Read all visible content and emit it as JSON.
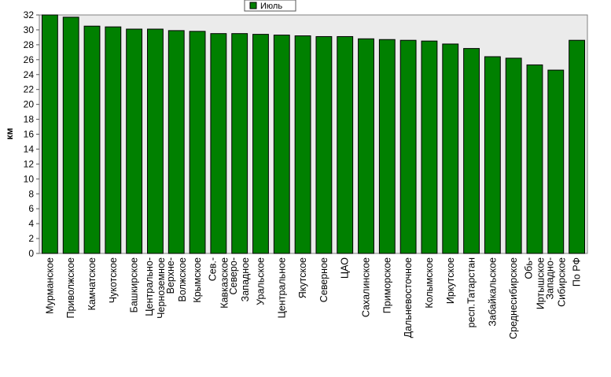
{
  "chart_data": {
    "type": "bar",
    "title": "",
    "xlabel": "",
    "ylabel": "км",
    "ylim": [
      0,
      32
    ],
    "ytick_step": 2,
    "grid": false,
    "legend_position": "top-center",
    "series": [
      {
        "name": "Июль",
        "color": "#008000",
        "values": [
          32.0,
          31.7,
          30.5,
          30.4,
          30.1,
          30.1,
          29.9,
          29.8,
          29.5,
          29.5,
          29.4,
          29.3,
          29.2,
          29.1,
          29.1,
          28.8,
          28.7,
          28.6,
          28.5,
          28.1,
          27.5,
          26.4,
          26.2,
          25.3,
          24.6,
          28.6
        ]
      }
    ],
    "categories": [
      "Мурманское",
      "Приволжское",
      "Камчатское",
      "Чукотское",
      "Башкирское",
      "Центрально-Черноземное",
      "Верхне-Волжское",
      "Крымское",
      "Сев.-Кавказское",
      "Северо-Западное",
      "Уральское",
      "Центральное",
      "Якутское",
      "Северное",
      "ЦАО",
      "Сахалинское",
      "Приморское",
      "Дальневосточное",
      "Колымское",
      "Иркутское",
      "респ.Татарстан",
      "Забайкальское",
      "Среднесибирское",
      "Обь-Иртышское",
      "Западно-Сибирское",
      "По РФ"
    ],
    "category_lines": [
      [
        "Мурманское"
      ],
      [
        "Приволжское"
      ],
      [
        "Камчатское"
      ],
      [
        "Чукотское"
      ],
      [
        "Башкирское"
      ],
      [
        "Центрально-",
        "Черноземное"
      ],
      [
        "Верхне-",
        "Волжское"
      ],
      [
        "Крымское"
      ],
      [
        "Сев.-",
        "Кавказское"
      ],
      [
        "Северо-",
        "Западное"
      ],
      [
        "Уральское"
      ],
      [
        "Центральное"
      ],
      [
        "Якутское"
      ],
      [
        "Северное"
      ],
      [
        "ЦАО"
      ],
      [
        "Сахалинское"
      ],
      [
        "Приморское"
      ],
      [
        "Дальневосточное"
      ],
      [
        "Колымское"
      ],
      [
        "Иркутское"
      ],
      [
        "респ.Татарстан"
      ],
      [
        "Забайкальское"
      ],
      [
        "Среднесибирское"
      ],
      [
        "Обь-",
        "Иртышское"
      ],
      [
        "Западно-",
        "Сибирское"
      ],
      [
        "По РФ"
      ]
    ]
  }
}
